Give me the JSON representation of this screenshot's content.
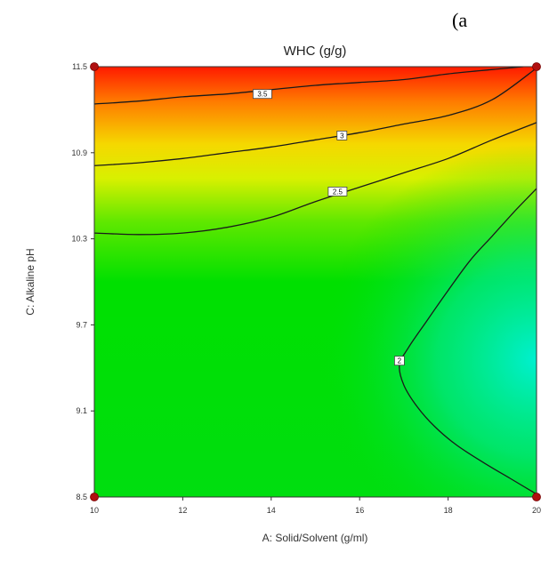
{
  "panel_label": "(a",
  "chart_data": {
    "type": "contour",
    "title": "WHC (g/g)",
    "xlabel": "A: Solid/Solvent (g/ml)",
    "ylabel": "C: Alkaline pH",
    "xlim": [
      10,
      20
    ],
    "ylim": [
      8.5,
      11.5
    ],
    "x_ticks": [
      "10",
      "12",
      "14",
      "16",
      "18",
      "20"
    ],
    "y_ticks": [
      "8.5",
      "9.1",
      "9.7",
      "10.3",
      "10.9",
      "11.5"
    ],
    "contours": [
      {
        "label": "3.5",
        "label_at": [
          13.8,
          11.31
        ],
        "points": [
          [
            10,
            11.24
          ],
          [
            11,
            11.26
          ],
          [
            12,
            11.29
          ],
          [
            13,
            11.31
          ],
          [
            14,
            11.34
          ],
          [
            15,
            11.37
          ],
          [
            16,
            11.39
          ],
          [
            17,
            11.41
          ],
          [
            18,
            11.45
          ],
          [
            19,
            11.48
          ],
          [
            19.7,
            11.5
          ]
        ]
      },
      {
        "label": "3",
        "label_at": [
          15.6,
          11.02
        ],
        "points": [
          [
            10,
            10.81
          ],
          [
            11,
            10.83
          ],
          [
            12,
            10.86
          ],
          [
            13,
            10.9
          ],
          [
            14,
            10.94
          ],
          [
            15,
            10.99
          ],
          [
            16,
            11.04
          ],
          [
            17,
            11.1
          ],
          [
            18,
            11.16
          ],
          [
            19,
            11.27
          ],
          [
            20,
            11.49
          ]
        ]
      },
      {
        "label": "2.5",
        "label_at": [
          15.5,
          10.63
        ],
        "points": [
          [
            10,
            10.34
          ],
          [
            11,
            10.33
          ],
          [
            12,
            10.34
          ],
          [
            13,
            10.38
          ],
          [
            14,
            10.45
          ],
          [
            15,
            10.56
          ],
          [
            16,
            10.66
          ],
          [
            17,
            10.76
          ],
          [
            18,
            10.86
          ],
          [
            19,
            10.99
          ],
          [
            20,
            11.11
          ]
        ]
      },
      {
        "label": "2",
        "label_at": [
          16.9,
          9.45
        ],
        "points": [
          [
            20,
            10.65
          ],
          [
            19.5,
            10.49
          ],
          [
            19,
            10.32
          ],
          [
            18.5,
            10.15
          ],
          [
            18,
            9.94
          ],
          [
            17.5,
            9.72
          ],
          [
            17.1,
            9.54
          ],
          [
            16.9,
            9.42
          ],
          [
            17.0,
            9.28
          ],
          [
            17.3,
            9.13
          ],
          [
            17.7,
            8.99
          ],
          [
            18.2,
            8.86
          ],
          [
            18.8,
            8.74
          ],
          [
            19.4,
            8.63
          ],
          [
            20,
            8.52
          ]
        ]
      }
    ],
    "design_points": [
      [
        10,
        8.5
      ],
      [
        20,
        8.5
      ],
      [
        10,
        11.5
      ],
      [
        20,
        11.5
      ]
    ],
    "color_scale": [
      "#00e8c0",
      "#00e000",
      "#f0f000",
      "#ff3000"
    ],
    "grid": false,
    "legend": "none"
  }
}
